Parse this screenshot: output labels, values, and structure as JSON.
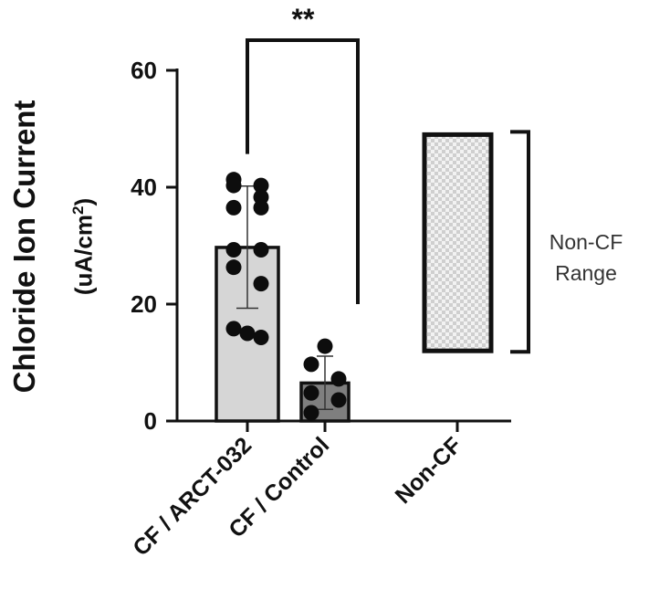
{
  "chart_data": {
    "type": "bar",
    "categories": [
      "CF / ARCT-032",
      "CF / Control",
      "Non-CF"
    ],
    "ylabel": {
      "line1": "Chloride Ion Current",
      "line2_prefix": "(uA/cm",
      "line2_sup": "2",
      "line2_suffix": ")"
    },
    "ylim": [
      0,
      60
    ],
    "yticks": [
      0,
      20,
      40,
      60
    ],
    "bars": [
      {
        "name": "CF / ARCT-032",
        "mean": 29.7,
        "sd_low": 19.3,
        "sd_high": 40.2,
        "color": "#d6d6d6",
        "points": [
          41.3,
          40.3,
          40.3,
          38.3,
          36.5,
          36.5,
          29.3,
          29.3,
          26.3,
          23.5,
          15.8,
          14.3,
          15.0
        ]
      },
      {
        "name": "CF / Control",
        "mean": 6.5,
        "sd_low": 2.0,
        "sd_high": 11.1,
        "color": "#7f7f7f",
        "points": [
          12.8,
          9.7,
          7.2,
          4.8,
          3.6,
          1.4
        ]
      }
    ],
    "range": {
      "category": "Non-CF",
      "low": 12.0,
      "high": 49.0,
      "label_line1": "Non-CF",
      "label_line2": "Range"
    },
    "significance": {
      "between": [
        "CF / ARCT-032",
        "CF / Control"
      ],
      "label": "**"
    }
  }
}
